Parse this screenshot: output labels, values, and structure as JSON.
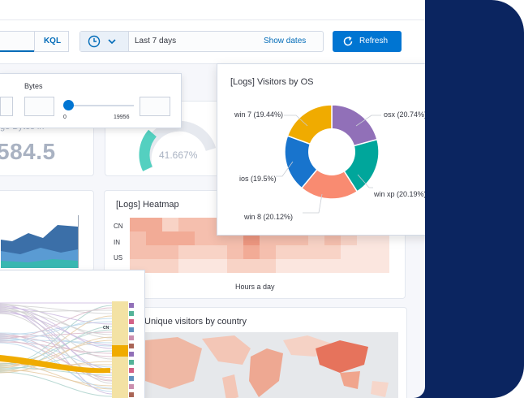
{
  "query_bar": {
    "language_label": "KQL"
  },
  "date_picker": {
    "range": "Last 7 days",
    "show_dates": "Show dates"
  },
  "refresh": {
    "label": "Refresh"
  },
  "bytes_control": {
    "label": "Bytes",
    "min": "0",
    "max": "19956"
  },
  "metric": {
    "label": "ge Bytes in",
    "value": "584.5"
  },
  "gauge": {
    "value": "41.667%"
  },
  "pie": {
    "title": "[Logs] Visitors by OS",
    "slices": [
      {
        "label": "osx (20.74%)",
        "color": "#9170b8"
      },
      {
        "label": "win xp (20.19%)",
        "color": "#00a69b"
      },
      {
        "label": "win 8 (20.12%)",
        "color": "#f98b71"
      },
      {
        "label": "ios (19.5%)",
        "color": "#1874cd"
      },
      {
        "label": "win 7 (19.44%)",
        "color": "#f0ab00"
      }
    ]
  },
  "heatmap": {
    "title": "[Logs] Heatmap",
    "categories": [
      "CN",
      "IN",
      "US"
    ],
    "x_label": "Hours a day"
  },
  "map": {
    "title": "Unique visitors by country"
  },
  "sankey": {
    "node_label": "CN"
  },
  "colors": {
    "navy": "#0b2560",
    "primary": "#0075d2",
    "link": "#006bb8"
  }
}
